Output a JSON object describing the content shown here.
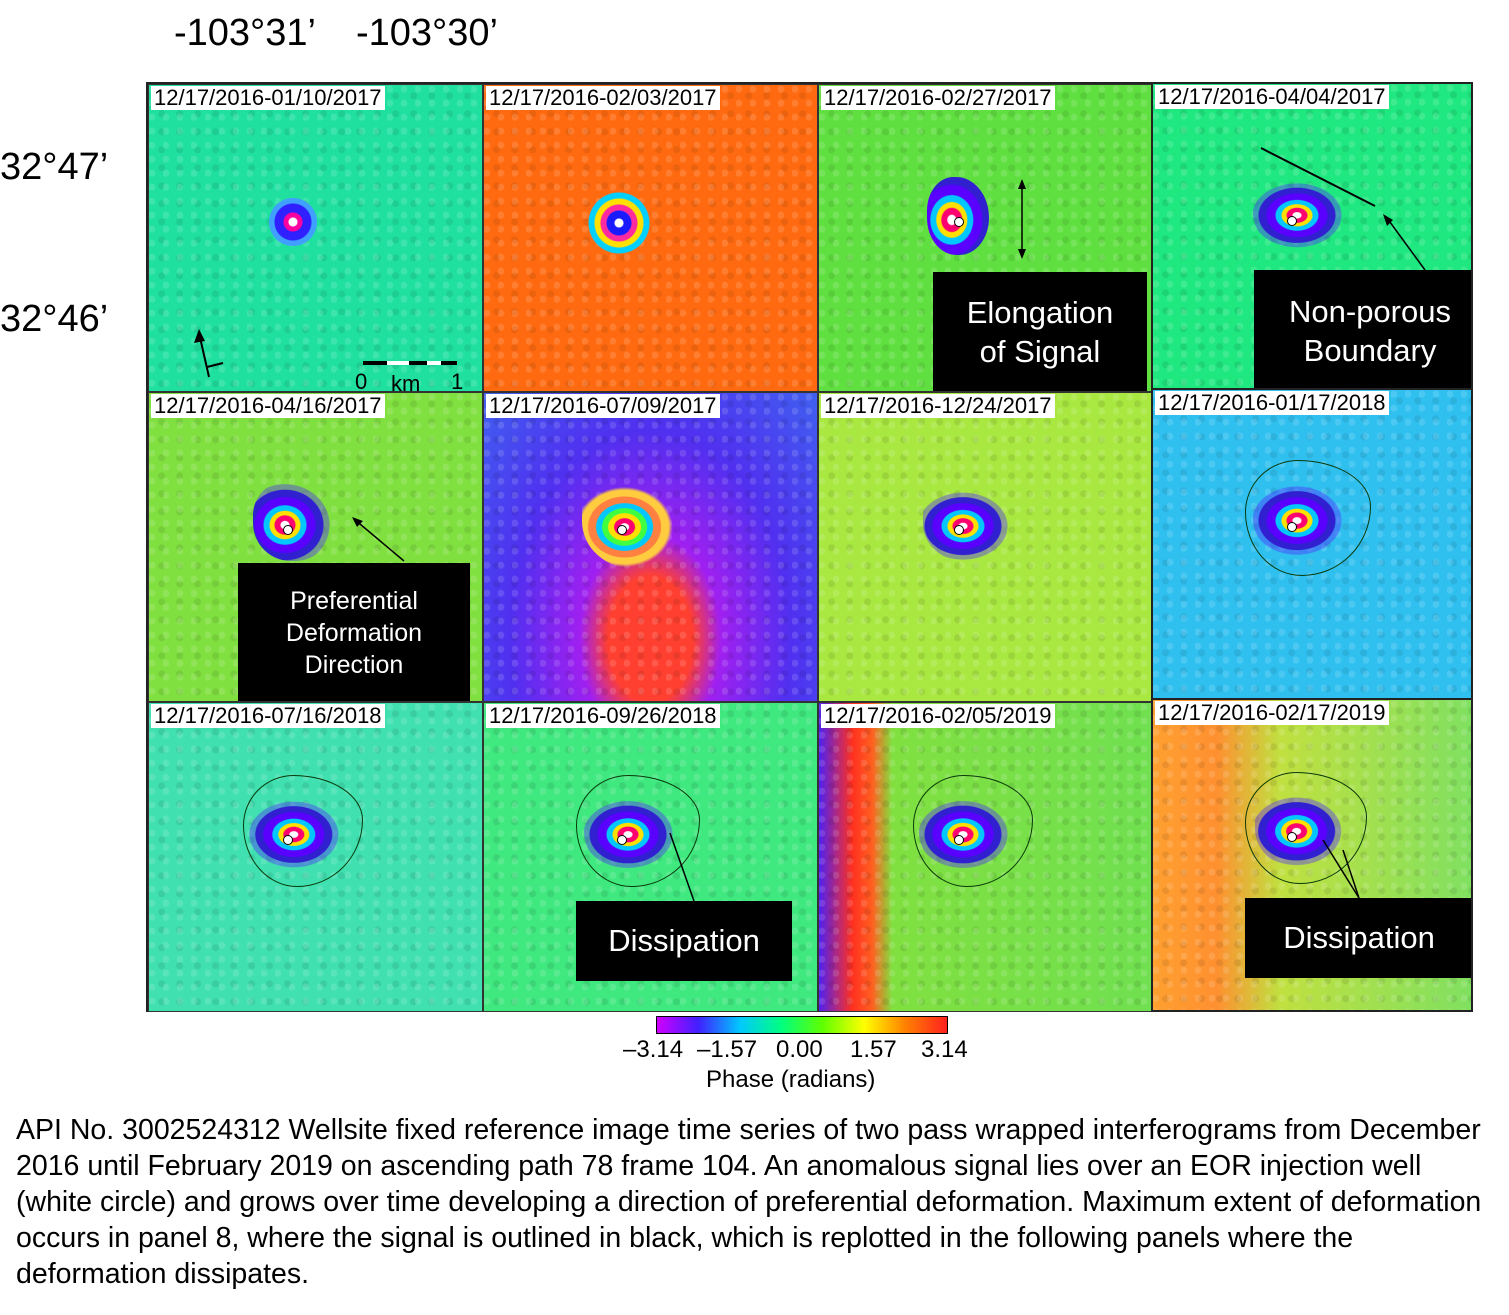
{
  "axes": {
    "longitudes": [
      "-103°31’",
      "-103°30’"
    ],
    "latitudes": [
      "32°47’",
      "32°46’"
    ]
  },
  "panels": [
    {
      "date": "12/17/2016-01/10/2017",
      "bg": "#20e0a0"
    },
    {
      "date": "12/17/2016-02/03/2017",
      "bg": "#ff6a10"
    },
    {
      "date": "12/17/2016-02/27/2017",
      "bg": "#60e040"
    },
    {
      "date": "12/17/2016-04/04/2017",
      "bg": "#20e880"
    },
    {
      "date": "12/17/2016-04/16/2017",
      "bg": "#80e040"
    },
    {
      "date": "12/17/2016-07/09/2017",
      "bg": "#5030f0"
    },
    {
      "date": "12/17/2016-12/24/2017",
      "bg": "#a8e840"
    },
    {
      "date": "12/17/2016-01/17/2018",
      "bg": "#30c0f0"
    },
    {
      "date": "12/17/2016-07/16/2018",
      "bg": "#40e0b0"
    },
    {
      "date": "12/17/2016-09/26/2018",
      "bg": "#40e880"
    },
    {
      "date": "12/17/2016-02/05/2019",
      "bg": "#70e050"
    },
    {
      "date": "12/17/2016-02/17/2019",
      "bg": "#80e060"
    }
  ],
  "annotations": {
    "elongation": [
      "Elongation",
      "of Signal"
    ],
    "non_porous": [
      "Non-porous",
      "Boundary"
    ],
    "preferential": [
      "Preferential",
      "Deformation",
      "Direction"
    ],
    "dissipation_1": "Dissipation",
    "dissipation_2": "Dissipation"
  },
  "scalebar": {
    "start": "0",
    "unit": "km",
    "end": "1"
  },
  "colorbar": {
    "ticks": [
      "–3.14",
      "–1.57",
      "0.00",
      "1.57",
      "3.14"
    ],
    "label": "Phase (radians)",
    "colors": [
      "#d000ff",
      "#4020ff",
      "#00c8ff",
      "#00ff80",
      "#60ff00",
      "#ffff00",
      "#ff8000",
      "#ff2020"
    ]
  },
  "caption": "API No. 3002524312 Wellsite fixed reference image time series of two pass wrapped interferograms from December 2016 until February 2019 on ascending path 78 frame 104. An anomalous signal lies over an EOR injection well (white circle) and grows over time developing a direction of preferential deformation. Maximum extent of deformation occurs in panel 8, where the signal is outlined in black, which is replotted in the following panels where the deformation dissipates."
}
